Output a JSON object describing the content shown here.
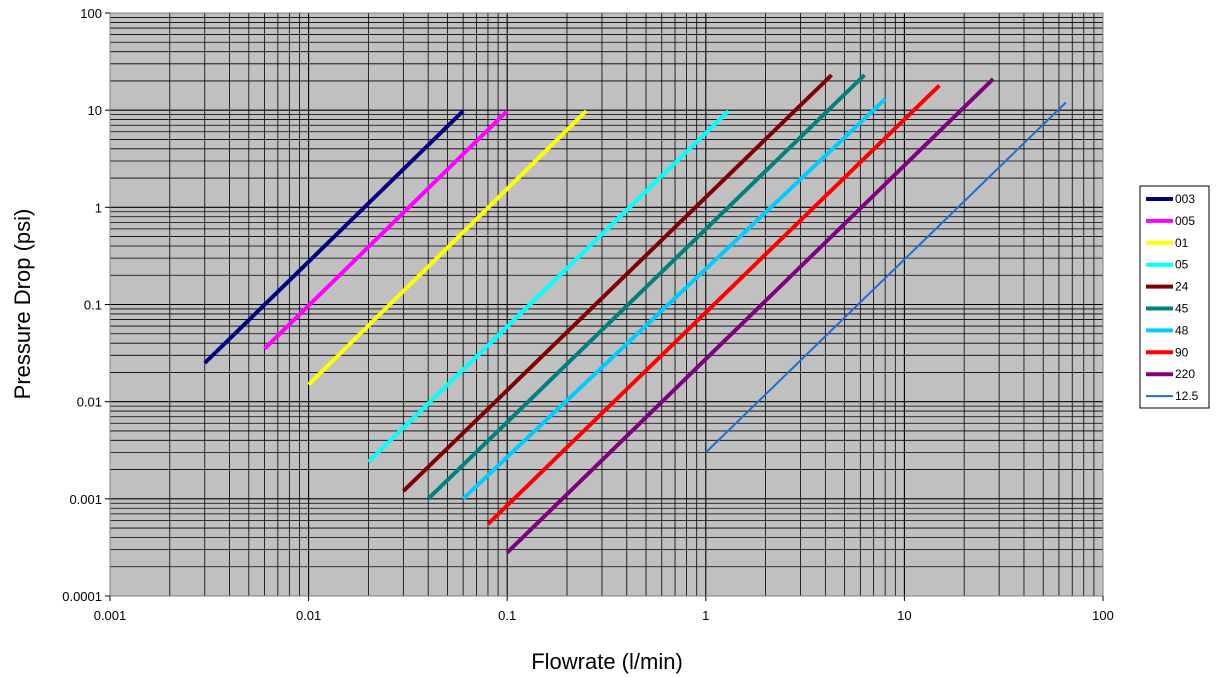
{
  "chart_data": {
    "type": "line",
    "xlabel": "Flowrate (l/min)",
    "ylabel": "Pressure Drop  (psi)",
    "x_scale": "log",
    "y_scale": "log",
    "xlim": [
      0.001,
      100
    ],
    "ylim": [
      0.0001,
      100
    ],
    "x_tick_labels": [
      "0.001",
      "0.01",
      "0.1",
      "1",
      "10",
      "100"
    ],
    "y_tick_labels": [
      "0.0001",
      "0.001",
      "0.01",
      "0.1",
      "1",
      "10",
      "100"
    ],
    "grid": "major and minor",
    "plot_background": "#c0c0c0",
    "legend_position": "right",
    "series": [
      {
        "name": "003",
        "color": "#000080",
        "x": [
          0.003,
          0.06
        ],
        "y": [
          0.025,
          9.8
        ]
      },
      {
        "name": "005",
        "color": "#ff00ff",
        "x": [
          0.006,
          0.1
        ],
        "y": [
          0.035,
          9.8
        ]
      },
      {
        "name": "01",
        "color": "#ffff00",
        "x": [
          0.01,
          0.25
        ],
        "y": [
          0.015,
          9.8
        ]
      },
      {
        "name": "05",
        "color": "#00ffff",
        "x": [
          0.02,
          1.3
        ],
        "y": [
          0.0024,
          9.8
        ]
      },
      {
        "name": "24",
        "color": "#800000",
        "x": [
          0.03,
          4.3
        ],
        "y": [
          0.0012,
          23
        ]
      },
      {
        "name": "45",
        "color": "#008080",
        "x": [
          0.04,
          6.3
        ],
        "y": [
          0.001,
          23
        ]
      },
      {
        "name": "48",
        "color": "#00ccff",
        "x": [
          0.06,
          8
        ],
        "y": [
          0.001,
          13
        ]
      },
      {
        "name": "90",
        "color": "#ff0000",
        "x": [
          0.08,
          15
        ],
        "y": [
          0.00055,
          18
        ]
      },
      {
        "name": "220",
        "color": "#800080",
        "x": [
          0.1,
          28
        ],
        "y": [
          0.00028,
          21
        ]
      },
      {
        "name": "12.5",
        "color": "#1f6fd1",
        "x": [
          1,
          65
        ],
        "y": [
          0.003,
          12
        ]
      }
    ]
  }
}
